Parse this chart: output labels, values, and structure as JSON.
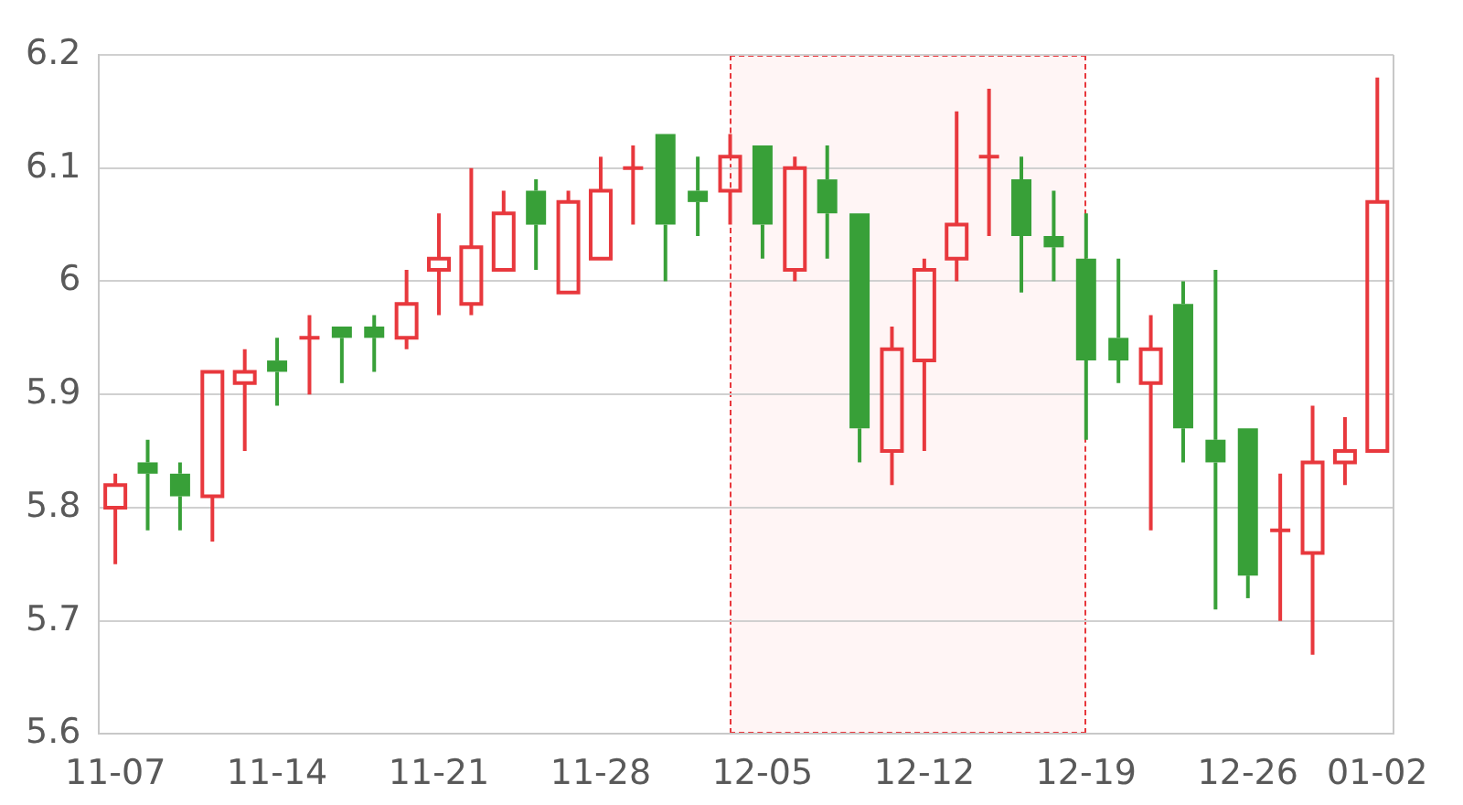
{
  "chart_data": {
    "type": "candlestick",
    "categories": [
      "11-07",
      null,
      null,
      null,
      null,
      "11-14",
      null,
      null,
      null,
      null,
      "11-21",
      null,
      null,
      null,
      null,
      "11-28",
      null,
      null,
      null,
      null,
      "12-05",
      null,
      null,
      null,
      null,
      "12-12",
      null,
      null,
      null,
      null,
      "12-19",
      null,
      null,
      null,
      null,
      "12-26",
      null,
      null,
      null,
      "01-02"
    ],
    "ohlc": [
      [
        5.8,
        5.83,
        5.75,
        5.82
      ],
      [
        5.84,
        5.86,
        5.78,
        5.83
      ],
      [
        5.83,
        5.84,
        5.78,
        5.81
      ],
      [
        5.81,
        5.92,
        5.77,
        5.92
      ],
      [
        5.91,
        5.94,
        5.85,
        5.92
      ],
      [
        5.93,
        5.95,
        5.89,
        5.92
      ],
      [
        5.95,
        5.97,
        5.9,
        5.95
      ],
      [
        5.96,
        5.96,
        5.91,
        5.95
      ],
      [
        5.96,
        5.97,
        5.92,
        5.95
      ],
      [
        5.95,
        6.01,
        5.94,
        5.98
      ],
      [
        6.01,
        6.06,
        5.97,
        6.02
      ],
      [
        5.98,
        6.1,
        5.97,
        6.03
      ],
      [
        6.01,
        6.08,
        6.01,
        6.06
      ],
      [
        6.08,
        6.09,
        6.01,
        6.05
      ],
      [
        5.99,
        6.08,
        5.99,
        6.07
      ],
      [
        6.02,
        6.11,
        6.02,
        6.08
      ],
      [
        6.1,
        6.12,
        6.05,
        6.1
      ],
      [
        6.13,
        6.13,
        6.0,
        6.05
      ],
      [
        6.08,
        6.11,
        6.04,
        6.07
      ],
      [
        6.08,
        6.13,
        6.05,
        6.11
      ],
      [
        6.12,
        6.12,
        6.02,
        6.05
      ],
      [
        6.01,
        6.11,
        6.0,
        6.1
      ],
      [
        6.09,
        6.12,
        6.02,
        6.06
      ],
      [
        6.06,
        6.06,
        5.84,
        5.87
      ],
      [
        5.85,
        5.96,
        5.82,
        5.94
      ],
      [
        5.93,
        6.02,
        5.85,
        6.01
      ],
      [
        6.02,
        6.15,
        6.0,
        6.05
      ],
      [
        6.11,
        6.17,
        6.04,
        6.11
      ],
      [
        6.09,
        6.11,
        5.99,
        6.04
      ],
      [
        6.04,
        6.08,
        6.0,
        6.03
      ],
      [
        6.02,
        6.06,
        5.86,
        5.93
      ],
      [
        5.95,
        6.02,
        5.91,
        5.93
      ],
      [
        5.91,
        5.97,
        5.78,
        5.94
      ],
      [
        5.98,
        6.0,
        5.84,
        5.87
      ],
      [
        5.86,
        6.01,
        5.71,
        5.84
      ],
      [
        5.87,
        5.87,
        5.72,
        5.74
      ],
      [
        5.78,
        5.83,
        5.7,
        5.78
      ],
      [
        5.76,
        5.89,
        5.67,
        5.84
      ],
      [
        5.84,
        5.88,
        5.82,
        5.85
      ],
      [
        5.85,
        6.18,
        5.85,
        6.07
      ]
    ],
    "colors": [
      "#e8383d",
      "#38a038",
      "#38a038",
      "#e8383d",
      "#e8383d",
      "#38a038",
      "#e8383d",
      "#38a038",
      "#38a038",
      "#e8383d",
      "#e8383d",
      "#e8383d",
      "#e8383d",
      "#38a038",
      "#e8383d",
      "#e8383d",
      "#e8383d",
      "#38a038",
      "#38a038",
      "#e8383d",
      "#38a038",
      "#e8383d",
      "#38a038",
      "#38a038",
      "#e8383d",
      "#e8383d",
      "#e8383d",
      "#e8383d",
      "#38a038",
      "#38a038",
      "#38a038",
      "#38a038",
      "#e8383d",
      "#38a038",
      "#38a038",
      "#38a038",
      "#e8383d",
      "#e8383d",
      "#e8383d",
      "#e8383d"
    ],
    "ylim": [
      5.6,
      6.2
    ],
    "yticks": [
      5.6,
      5.7,
      5.8,
      5.9,
      6,
      6.1,
      6.2
    ],
    "grid": "y",
    "legend": false
  }
}
